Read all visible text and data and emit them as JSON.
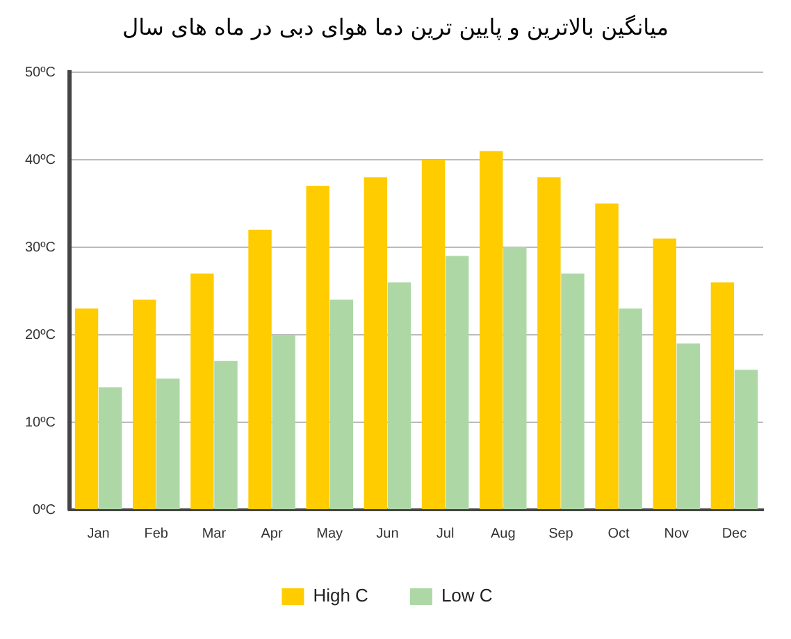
{
  "chart_data": {
    "type": "bar",
    "title": "میانگین بالاترین و پایین ترین دما هوای دبی در ماه های سال",
    "categories": [
      "Jan",
      "Feb",
      "Mar",
      "Apr",
      "May",
      "Jun",
      "Jul",
      "Aug",
      "Sep",
      "Oct",
      "Nov",
      "Dec"
    ],
    "series": [
      {
        "name": "High C",
        "color": "#ffcc00",
        "values": [
          23,
          24,
          27,
          32,
          37,
          38,
          40,
          41,
          38,
          35,
          31,
          26
        ]
      },
      {
        "name": "Low C",
        "color": "#add8a6",
        "values": [
          14,
          15,
          17,
          20,
          24,
          26,
          29,
          30,
          27,
          23,
          19,
          16
        ]
      }
    ],
    "ylim": [
      0,
      50
    ],
    "yticks": [
      {
        "value": 0,
        "label": "0ºC"
      },
      {
        "value": 10,
        "label": "10ºC"
      },
      {
        "value": 20,
        "label": "20ºC"
      },
      {
        "value": 30,
        "label": "30ºC"
      },
      {
        "value": 40,
        "label": "40ºC"
      },
      {
        "value": 50,
        "label": "50ºC"
      }
    ],
    "grid": "y",
    "legend": "bottom"
  }
}
